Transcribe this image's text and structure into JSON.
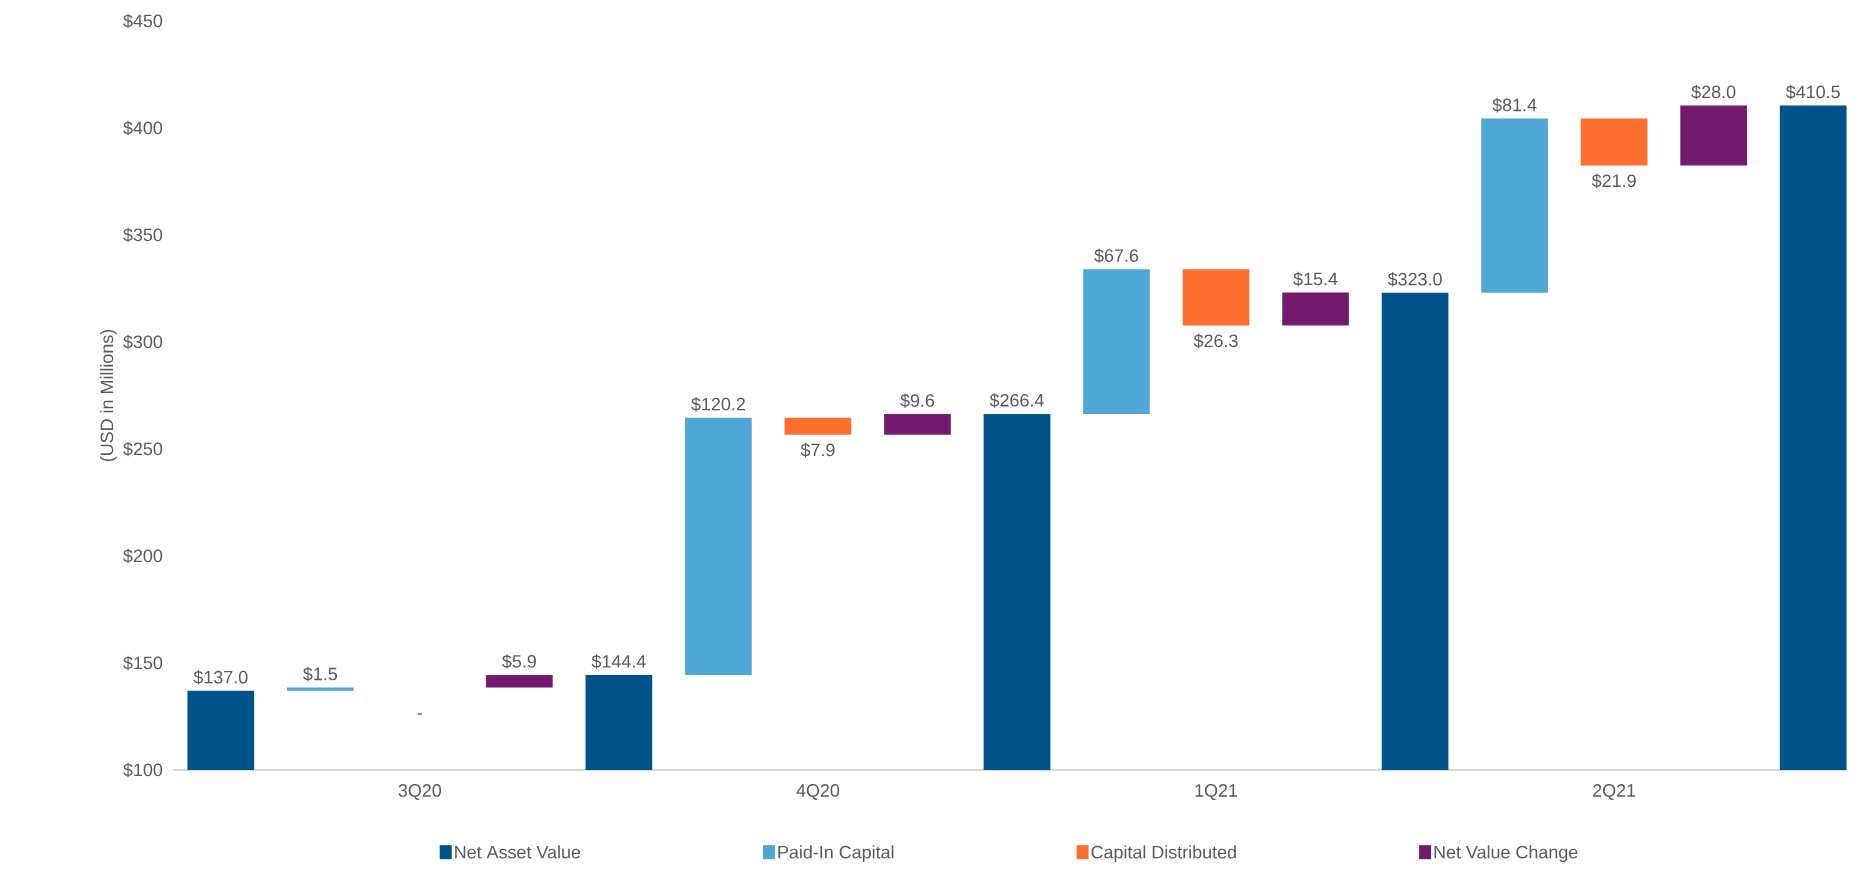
{
  "chart_data": {
    "type": "bar",
    "ylabel": "(USD in Millions)",
    "categories": [
      null,
      null,
      "3Q20",
      null,
      null,
      null,
      "4Q20",
      null,
      null,
      null,
      "1Q21",
      null,
      null,
      null,
      "2Q21",
      null,
      null
    ],
    "ylim": [
      100,
      450
    ],
    "yticks": [
      {
        "value": 100,
        "label": "$100"
      },
      {
        "value": 150,
        "label": "$150"
      },
      {
        "value": 200,
        "label": "$200"
      },
      {
        "value": 250,
        "label": "$250"
      },
      {
        "value": 300,
        "label": "$300"
      },
      {
        "value": 350,
        "label": "$350"
      },
      {
        "value": 400,
        "label": "$400"
      },
      {
        "value": 450,
        "label": "$450"
      }
    ],
    "grid": false,
    "legend": "bottom",
    "series": [
      {
        "name": "Net Asset Value",
        "color": "#00538a",
        "values": [
          137.0,
          null,
          null,
          null,
          144.4,
          null,
          null,
          null,
          266.4,
          null,
          null,
          null,
          323.0,
          null,
          null,
          null,
          410.5
        ],
        "value_labels": [
          "$137.0",
          null,
          null,
          null,
          "$144.4",
          null,
          null,
          null,
          "$266.4",
          null,
          null,
          null,
          "$323.0",
          null,
          null,
          null,
          "$410.5"
        ]
      },
      {
        "name": "Paid-In Capital",
        "color": "#4fa7d6",
        "values": [
          null,
          1.5,
          null,
          null,
          null,
          120.2,
          null,
          null,
          null,
          67.6,
          null,
          null,
          null,
          81.4,
          null,
          null,
          null
        ],
        "base": [
          null,
          137.0,
          null,
          null,
          null,
          144.4,
          null,
          null,
          null,
          266.4,
          null,
          null,
          null,
          323.0,
          null,
          null,
          null
        ],
        "value_labels": [
          null,
          "$1.5",
          null,
          null,
          null,
          "$120.2",
          null,
          null,
          null,
          "$67.6",
          null,
          null,
          null,
          "$81.4",
          null,
          null,
          null
        ]
      },
      {
        "name": "Capital Distributed",
        "color": "#fe6f2f",
        "values": [
          null,
          null,
          0,
          null,
          null,
          null,
          -7.9,
          null,
          null,
          null,
          -26.3,
          null,
          null,
          null,
          -21.9,
          null,
          null
        ],
        "base": [
          null,
          null,
          null,
          null,
          null,
          null,
          264.6,
          null,
          null,
          null,
          334.0,
          null,
          null,
          null,
          404.4,
          null,
          null
        ],
        "value_labels": [
          null,
          null,
          "-",
          null,
          null,
          null,
          "$7.9",
          null,
          null,
          null,
          "$26.3",
          null,
          null,
          null,
          "$21.9",
          null,
          null
        ]
      },
      {
        "name": "Net Value Change",
        "color": "#731a6e",
        "values": [
          null,
          null,
          null,
          5.9,
          null,
          null,
          null,
          9.6,
          null,
          null,
          null,
          15.4,
          null,
          null,
          null,
          28.0,
          null
        ],
        "base": [
          null,
          null,
          null,
          138.5,
          null,
          null,
          null,
          256.7,
          null,
          null,
          null,
          307.7,
          null,
          null,
          null,
          382.5,
          null
        ],
        "value_labels": [
          null,
          null,
          null,
          "$5.9",
          null,
          null,
          null,
          "$9.6",
          null,
          null,
          null,
          "$15.4",
          null,
          null,
          null,
          "$28.0",
          null
        ]
      }
    ]
  }
}
